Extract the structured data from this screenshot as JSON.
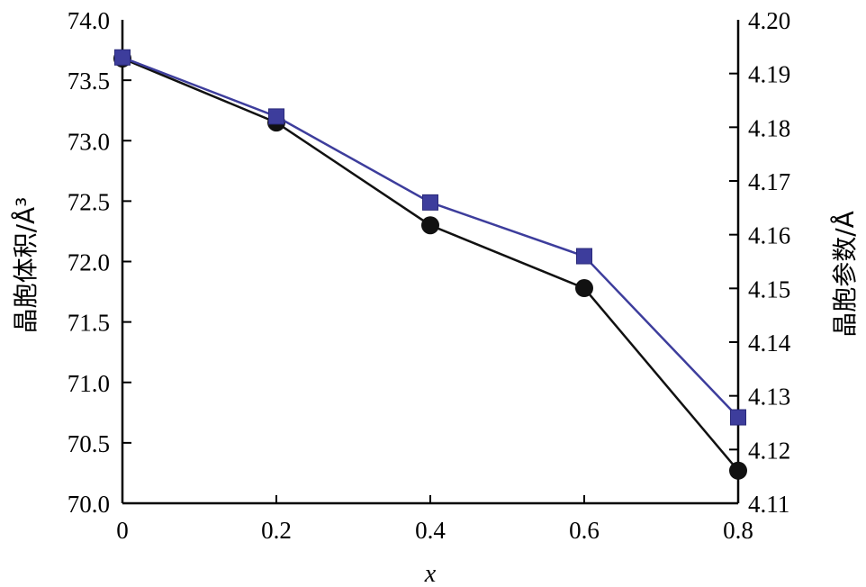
{
  "chart_data": {
    "type": "line",
    "xlabel": "x",
    "y_left_label": "晶胞体积/Å³",
    "y_right_label": "晶胞参数/Å",
    "x_ticks": [
      "0",
      "0.2",
      "0.4",
      "0.6",
      "0.8"
    ],
    "x_tick_values": [
      0,
      0.2,
      0.4,
      0.6,
      0.8
    ],
    "xlim": [
      0,
      0.8
    ],
    "y_left_ticks": [
      "70.0",
      "70.5",
      "71.0",
      "71.5",
      "72.0",
      "72.5",
      "73.0",
      "73.5",
      "74.0"
    ],
    "y_left_tick_values": [
      70.0,
      70.5,
      71.0,
      71.5,
      72.0,
      72.5,
      73.0,
      73.5,
      74.0
    ],
    "y_left_lim": [
      70.0,
      74.0
    ],
    "y_right_ticks": [
      "4.11",
      "4.12",
      "4.13",
      "4.14",
      "4.15",
      "4.16",
      "4.17",
      "4.18",
      "4.19",
      "4.20"
    ],
    "y_right_tick_values": [
      4.11,
      4.12,
      4.13,
      4.14,
      4.15,
      4.16,
      4.17,
      4.18,
      4.19,
      4.2
    ],
    "y_right_lim": [
      4.11,
      4.2
    ],
    "grid": false,
    "series": [
      {
        "axis": "left",
        "marker": "circle",
        "color": "#111111",
        "x": [
          0,
          0.2,
          0.4,
          0.6,
          0.8
        ],
        "values": [
          73.68,
          73.15,
          72.3,
          71.78,
          70.27
        ]
      },
      {
        "axis": "right",
        "marker": "square",
        "color": "#3d3d9c",
        "x": [
          0,
          0.2,
          0.4,
          0.6,
          0.8
        ],
        "values": [
          4.193,
          4.182,
          4.166,
          4.156,
          4.126
        ]
      }
    ]
  }
}
